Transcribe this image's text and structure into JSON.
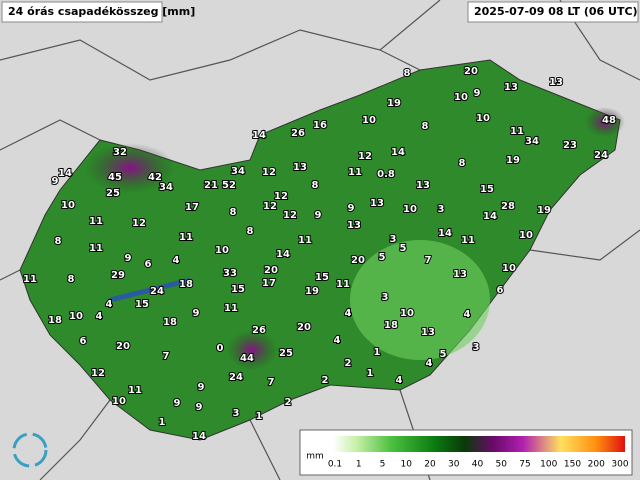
{
  "header": {
    "title": "24 órás csapadékösszeg [mm]",
    "time": "2025-07-09 08 LT (06 UTC)"
  },
  "stations": [
    8,
    20,
    13,
    13,
    19,
    10,
    9,
    10,
    8,
    10,
    48,
    14,
    26,
    16,
    11,
    34,
    23,
    24,
    32,
    12,
    14,
    19,
    8,
    9,
    14,
    45,
    42,
    34,
    21,
    52,
    34,
    12,
    13,
    11,
    0.8,
    8,
    13,
    15,
    25,
    12,
    10,
    17,
    8,
    12,
    12,
    9,
    9,
    13,
    10,
    3,
    28,
    19,
    11,
    12,
    14,
    13,
    11,
    8,
    11,
    14,
    11,
    10,
    8,
    11,
    10,
    3,
    5,
    9,
    6,
    4,
    14,
    20,
    5,
    7,
    11,
    8,
    29,
    33,
    20,
    17,
    15,
    11,
    13,
    10,
    24,
    18,
    15,
    19,
    3,
    6,
    4,
    15,
    18,
    10,
    4,
    18,
    9,
    11,
    4,
    10,
    18,
    4,
    26,
    20,
    13,
    6,
    20,
    0,
    4,
    1,
    3,
    7,
    44,
    25,
    2,
    1,
    5,
    4,
    12,
    24,
    7,
    2,
    4,
    11,
    9,
    10,
    9,
    9,
    2,
    3,
    1,
    1,
    14
  ],
  "legend": {
    "unit": "mm",
    "labels": [
      0.1,
      1,
      5,
      10,
      20,
      30,
      40,
      50,
      75,
      100,
      150,
      200,
      300
    ]
  }
}
